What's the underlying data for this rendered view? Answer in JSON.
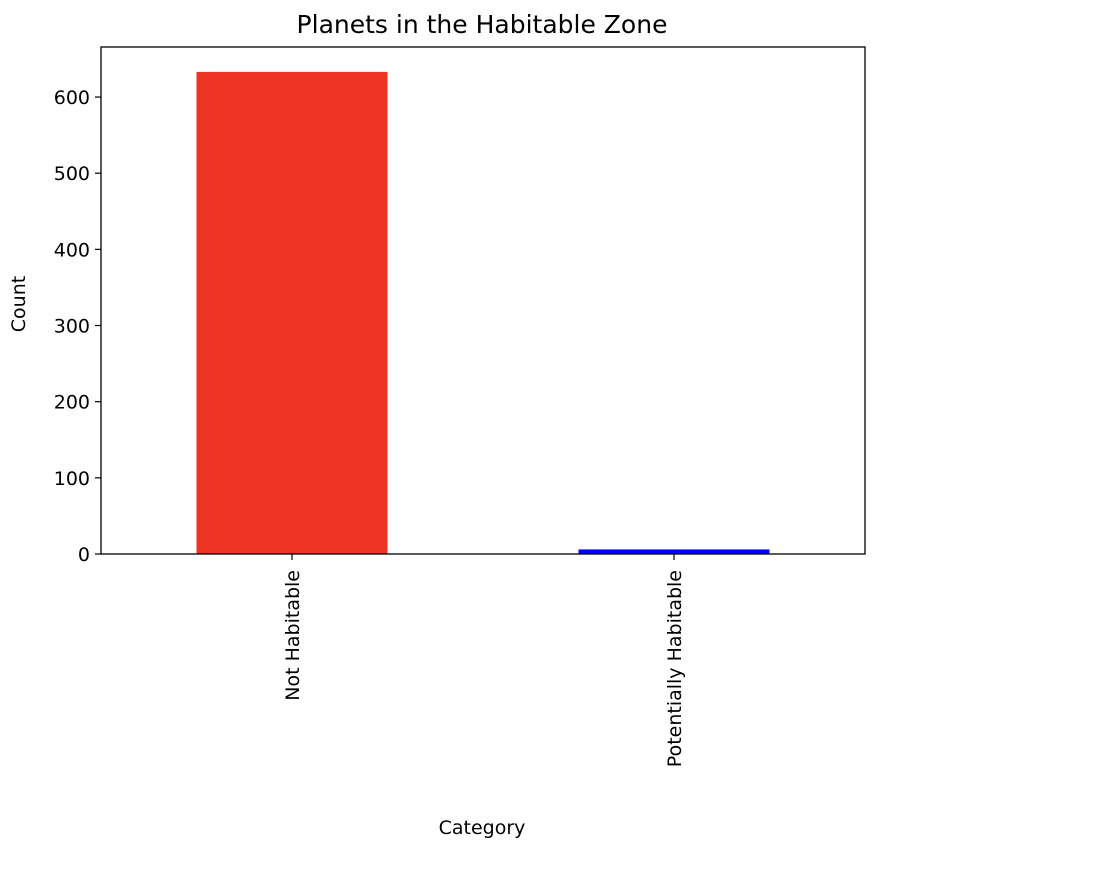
{
  "chart_data": {
    "type": "bar",
    "title": "Planets in the Habitable Zone",
    "xlabel": "Category",
    "ylabel": "Count",
    "categories": [
      "Not Habitable",
      "Potentially Habitable"
    ],
    "values": [
      633,
      6
    ],
    "bar_colors": [
      "#ee3424",
      "#0000ff"
    ],
    "ylim": [
      0,
      665.7
    ],
    "yticks": [
      0,
      100,
      200,
      300,
      400,
      500,
      600
    ],
    "ytick_labels": [
      "0",
      "100",
      "200",
      "300",
      "400",
      "500",
      "600"
    ],
    "grid": false,
    "legend": "none"
  }
}
